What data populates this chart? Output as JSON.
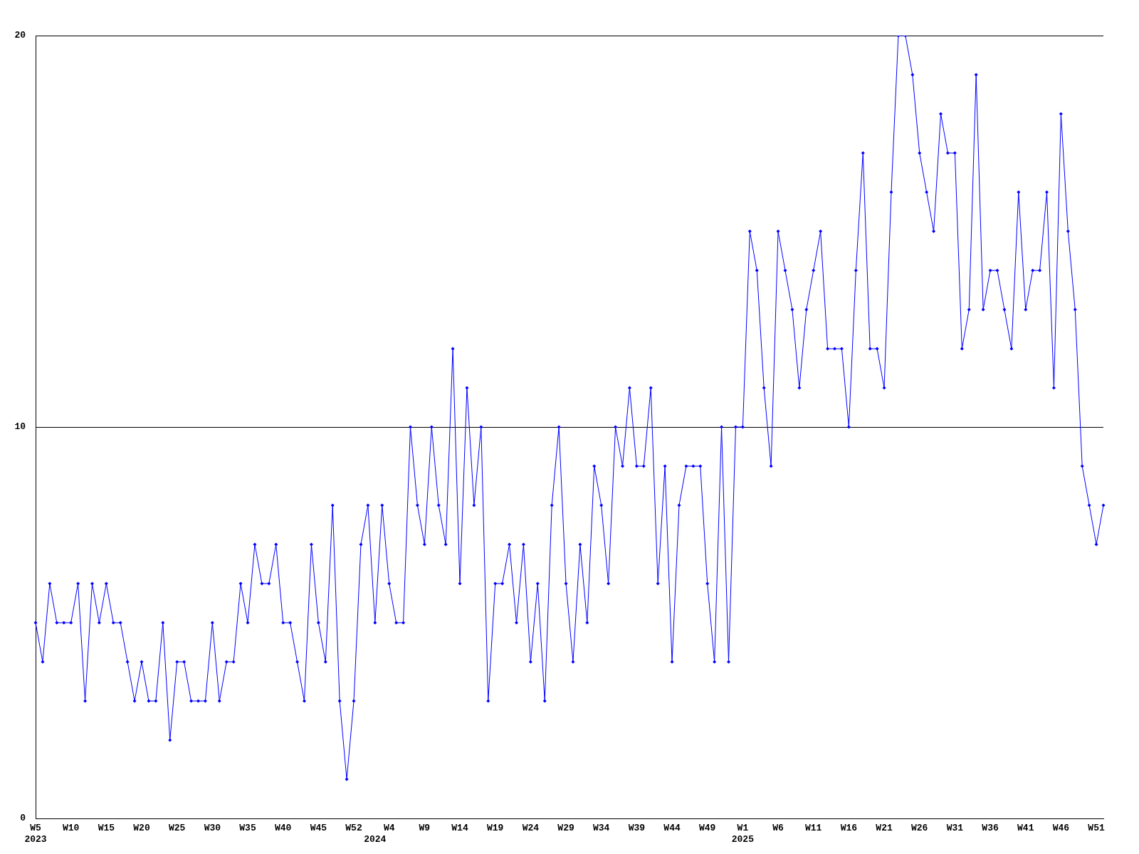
{
  "chart_data": {
    "type": "line",
    "categories": [
      "W5\n2023",
      null,
      null,
      null,
      null,
      "W10",
      null,
      null,
      null,
      null,
      "W15",
      null,
      null,
      null,
      null,
      "W20",
      null,
      null,
      null,
      null,
      "W25",
      null,
      null,
      null,
      null,
      "W30",
      null,
      null,
      null,
      null,
      "W35",
      null,
      null,
      null,
      null,
      "W40",
      null,
      null,
      null,
      null,
      "W45",
      null,
      null,
      null,
      null,
      "W52",
      null,
      null,
      "\n2024",
      null,
      "W4",
      null,
      null,
      null,
      null,
      "W9",
      null,
      null,
      null,
      null,
      "W14",
      null,
      null,
      null,
      null,
      "W19",
      null,
      null,
      null,
      null,
      "W24",
      null,
      null,
      null,
      null,
      "W29",
      null,
      null,
      null,
      null,
      "W34",
      null,
      null,
      null,
      null,
      "W39",
      null,
      null,
      null,
      null,
      "W44",
      null,
      null,
      null,
      null,
      "W49",
      null,
      null,
      null,
      null,
      "W1\n2025",
      null,
      null,
      null,
      null,
      "W6",
      null,
      null,
      null,
      null,
      "W11",
      null,
      null,
      null,
      null,
      "W16",
      null,
      null,
      null,
      null,
      "W21",
      null,
      null,
      null,
      null,
      "W26",
      null,
      null,
      null,
      null,
      "W31",
      null,
      null,
      null,
      null,
      "W36",
      null,
      null,
      null,
      null,
      "W41",
      null,
      null,
      null,
      null,
      "W46",
      null,
      null,
      null,
      null,
      "W51",
      null
    ],
    "series": [
      {
        "color": "#0000ff",
        "values": [
          5,
          4,
          6,
          5,
          5,
          5,
          6,
          3,
          6,
          5,
          6,
          5,
          5,
          4,
          3,
          4,
          3,
          3,
          5,
          2,
          4,
          4,
          3,
          3,
          3,
          5,
          3,
          4,
          4,
          6,
          5,
          7,
          6,
          6,
          7,
          5,
          5,
          4,
          3,
          7,
          5,
          4,
          8,
          3,
          1,
          3,
          7,
          8,
          5,
          8,
          6,
          5,
          5,
          10,
          8,
          7,
          10,
          8,
          7,
          12,
          6,
          11,
          8,
          10,
          3,
          6,
          6,
          7,
          5,
          7,
          4,
          6,
          3,
          8,
          10,
          6,
          4,
          7,
          5,
          9,
          8,
          6,
          10,
          9,
          11,
          9,
          9,
          11,
          6,
          9,
          4,
          8,
          9,
          9,
          9,
          6,
          4,
          10,
          4,
          10,
          10,
          15,
          14,
          11,
          9,
          15,
          14,
          13,
          11,
          13,
          14,
          15,
          12,
          12,
          12,
          10,
          14,
          17,
          12,
          12,
          11,
          16,
          20,
          20,
          19,
          17,
          16,
          15,
          18,
          17,
          17,
          12,
          13,
          19,
          13,
          14,
          14,
          13,
          12,
          16,
          13,
          14,
          14,
          16,
          11,
          18,
          15,
          13,
          9,
          8,
          7,
          8
        ]
      }
    ],
    "ylim": [
      0,
      20
    ],
    "yticks": [
      0,
      10,
      20
    ],
    "grid": "y",
    "marker": "diamond",
    "line_style": "solid",
    "legend": false
  }
}
